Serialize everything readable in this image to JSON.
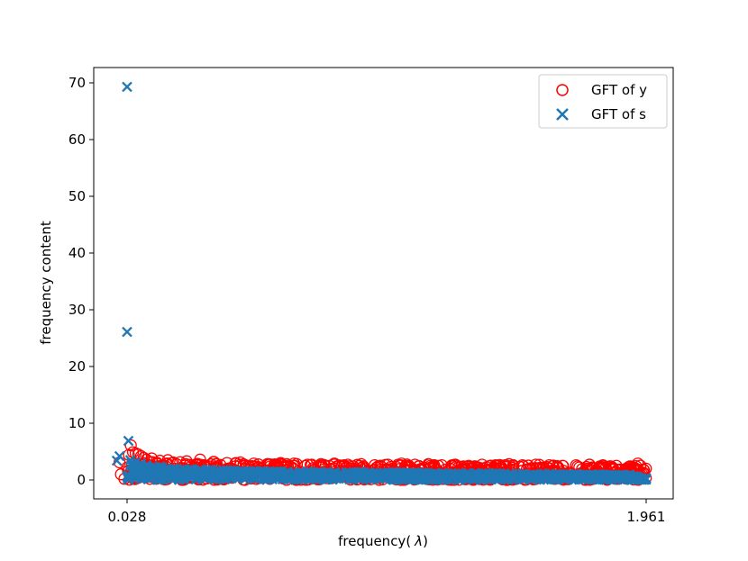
{
  "chart_data": {
    "type": "scatter",
    "xlabel": "frequency(",
    "xlabel_symbol": "λ",
    "xlabel_close": ")",
    "ylabel": "frequency content",
    "xlim": [
      0.028,
      1.961
    ],
    "ylim": [
      -3.5,
      73
    ],
    "xticks": [
      0.028,
      1.961
    ],
    "xtick_labels": [
      "0.028",
      "1.961"
    ],
    "yticks": [
      0,
      10,
      20,
      30,
      40,
      50,
      60,
      70
    ],
    "ytick_labels": [
      "0",
      "10",
      "20",
      "30",
      "40",
      "50",
      "60",
      "70"
    ],
    "grid": false,
    "legend_position": "top-right",
    "series": [
      {
        "name": "GFT of y",
        "marker": "circle-open",
        "color": "#ff0000",
        "points": [
          [
            0.0,
            3.1
          ],
          [
            0.005,
            1.0
          ],
          [
            0.018,
            0.2
          ],
          [
            0.028,
            2.2
          ],
          [
            0.035,
            4.4
          ],
          [
            0.042,
            6.1
          ],
          [
            0.05,
            4.9
          ],
          [
            0.06,
            4.7
          ],
          [
            0.07,
            4.5
          ],
          [
            0.08,
            4.2
          ],
          [
            0.09,
            3.9
          ],
          [
            0.1,
            3.6
          ],
          [
            0.12,
            3.8
          ],
          [
            0.15,
            3.4
          ],
          [
            0.18,
            3.5
          ],
          [
            0.2,
            3.1
          ],
          [
            0.25,
            3.3
          ],
          [
            0.3,
            3.6
          ],
          [
            0.35,
            3.2
          ],
          [
            0.4,
            3.0
          ],
          [
            0.45,
            3.1
          ],
          [
            0.5,
            2.9
          ],
          [
            0.55,
            2.8
          ],
          [
            0.6,
            3.0
          ],
          [
            0.65,
            2.9
          ],
          [
            0.7,
            2.7
          ],
          [
            0.75,
            2.8
          ],
          [
            0.8,
            2.9
          ],
          [
            0.85,
            2.7
          ],
          [
            0.9,
            2.8
          ],
          [
            0.95,
            2.6
          ],
          [
            1.0,
            2.7
          ],
          [
            1.05,
            2.9
          ],
          [
            1.1,
            2.7
          ],
          [
            1.15,
            2.8
          ],
          [
            1.2,
            2.6
          ],
          [
            1.25,
            2.7
          ],
          [
            1.3,
            2.5
          ],
          [
            1.35,
            2.7
          ],
          [
            1.4,
            2.6
          ],
          [
            1.45,
            2.8
          ],
          [
            1.5,
            2.6
          ],
          [
            1.55,
            2.7
          ],
          [
            1.6,
            2.6
          ],
          [
            1.65,
            2.5
          ],
          [
            1.7,
            2.6
          ],
          [
            1.75,
            2.7
          ],
          [
            1.8,
            2.6
          ],
          [
            1.85,
            2.5
          ],
          [
            1.9,
            2.4
          ],
          [
            1.93,
            2.9
          ],
          [
            1.96,
            2.0
          ]
        ]
      },
      {
        "name": "GFT of s",
        "marker": "x",
        "color": "#1f77b4",
        "points": [
          [
            -0.01,
            3.4
          ],
          [
            0.0,
            4.2
          ],
          [
            0.028,
            69.3
          ],
          [
            0.028,
            26.1
          ],
          [
            0.033,
            6.9
          ],
          [
            0.04,
            3.5
          ],
          [
            0.06,
            3.1
          ],
          [
            0.08,
            2.9
          ],
          [
            0.1,
            2.6
          ],
          [
            0.15,
            2.4
          ],
          [
            0.2,
            2.0
          ],
          [
            0.3,
            1.9
          ],
          [
            0.4,
            1.7
          ],
          [
            0.5,
            1.6
          ],
          [
            0.6,
            1.5
          ],
          [
            0.7,
            1.5
          ],
          [
            0.8,
            1.4
          ],
          [
            0.9,
            1.4
          ],
          [
            1.0,
            1.3
          ],
          [
            1.1,
            1.3
          ],
          [
            1.2,
            1.2
          ],
          [
            1.3,
            1.2
          ],
          [
            1.4,
            1.2
          ],
          [
            1.5,
            1.1
          ],
          [
            1.6,
            1.1
          ],
          [
            1.7,
            1.0
          ],
          [
            1.8,
            1.0
          ],
          [
            1.9,
            0.9
          ],
          [
            1.961,
            0.3
          ]
        ]
      }
    ]
  }
}
